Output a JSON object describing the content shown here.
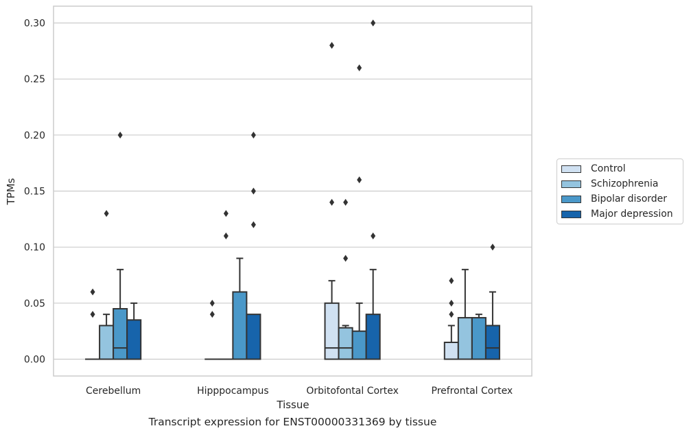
{
  "caption": "Transcript expression for ENST00000331369 by tissue",
  "colors": {
    "Control": "#d0e1f2",
    "Schizophrenia": "#94c4df",
    "Bipolar disorder": "#4a98c9",
    "Major depression": "#1764ab",
    "box_edge": "#333333",
    "grid": "#cccccc"
  },
  "legend": {
    "items": [
      "Control",
      "Schizophrenia",
      "Bipolar disorder",
      "Major depression"
    ]
  },
  "chart_data": {
    "type": "box",
    "title": "",
    "xlabel": "Tissue",
    "ylabel": "TPMs",
    "ylim": [
      -0.015,
      0.315
    ],
    "yticks": [
      0.0,
      0.05,
      0.1,
      0.15,
      0.2,
      0.25,
      0.3
    ],
    "ytick_labels": [
      "0.00",
      "0.05",
      "0.10",
      "0.15",
      "0.20",
      "0.25",
      "0.30"
    ],
    "grid": true,
    "legend_position": "right",
    "categories": [
      "Cerebellum",
      "Hipppocampus",
      "Orbitofontal Cortex",
      "Prefrontal Cortex"
    ],
    "series": [
      {
        "name": "Control",
        "boxes": [
          {
            "q1": 0.0,
            "median": 0.0,
            "q3": 0.0,
            "whisker_low": 0.0,
            "whisker_high": 0.0,
            "outliers": [
              0.04,
              0.06
            ]
          },
          {
            "q1": 0.0,
            "median": 0.0,
            "q3": 0.0,
            "whisker_low": 0.0,
            "whisker_high": 0.0,
            "outliers": [
              0.04,
              0.05
            ]
          },
          {
            "q1": 0.0,
            "median": 0.01,
            "q3": 0.05,
            "whisker_low": 0.0,
            "whisker_high": 0.07,
            "outliers": [
              0.14,
              0.28
            ]
          },
          {
            "q1": 0.0,
            "median": 0.0,
            "q3": 0.015,
            "whisker_low": 0.0,
            "whisker_high": 0.03,
            "outliers": [
              0.04,
              0.05,
              0.07
            ]
          }
        ]
      },
      {
        "name": "Schizophrenia",
        "boxes": [
          {
            "q1": 0.0,
            "median": 0.0,
            "q3": 0.03,
            "whisker_low": 0.0,
            "whisker_high": 0.04,
            "outliers": [
              0.13
            ]
          },
          {
            "q1": 0.0,
            "median": 0.0,
            "q3": 0.0,
            "whisker_low": 0.0,
            "whisker_high": 0.0,
            "outliers": [
              0.11,
              0.13
            ]
          },
          {
            "q1": 0.0,
            "median": 0.01,
            "q3": 0.028,
            "whisker_low": 0.0,
            "whisker_high": 0.03,
            "outliers": [
              0.09,
              0.14
            ]
          },
          {
            "q1": 0.0,
            "median": 0.0,
            "q3": 0.037,
            "whisker_low": 0.0,
            "whisker_high": 0.08,
            "outliers": []
          }
        ]
      },
      {
        "name": "Bipolar disorder",
        "boxes": [
          {
            "q1": 0.0,
            "median": 0.01,
            "q3": 0.045,
            "whisker_low": 0.0,
            "whisker_high": 0.08,
            "outliers": [
              0.2
            ]
          },
          {
            "q1": 0.0,
            "median": 0.0,
            "q3": 0.06,
            "whisker_low": 0.0,
            "whisker_high": 0.09,
            "outliers": []
          },
          {
            "q1": 0.0,
            "median": 0.0,
            "q3": 0.025,
            "whisker_low": 0.0,
            "whisker_high": 0.05,
            "outliers": [
              0.16,
              0.26
            ]
          },
          {
            "q1": 0.0,
            "median": 0.0,
            "q3": 0.037,
            "whisker_low": 0.0,
            "whisker_high": 0.04,
            "outliers": []
          }
        ]
      },
      {
        "name": "Major depression",
        "boxes": [
          {
            "q1": 0.0,
            "median": 0.0,
            "q3": 0.035,
            "whisker_low": 0.0,
            "whisker_high": 0.05,
            "outliers": []
          },
          {
            "q1": 0.0,
            "median": 0.0,
            "q3": 0.04,
            "whisker_low": 0.0,
            "whisker_high": 0.04,
            "outliers": [
              0.12,
              0.15,
              0.2
            ]
          },
          {
            "q1": 0.0,
            "median": 0.0,
            "q3": 0.04,
            "whisker_low": 0.0,
            "whisker_high": 0.08,
            "outliers": [
              0.11,
              0.3
            ]
          },
          {
            "q1": 0.0,
            "median": 0.01,
            "q3": 0.03,
            "whisker_low": 0.0,
            "whisker_high": 0.06,
            "outliers": [
              0.1
            ]
          }
        ]
      }
    ]
  }
}
